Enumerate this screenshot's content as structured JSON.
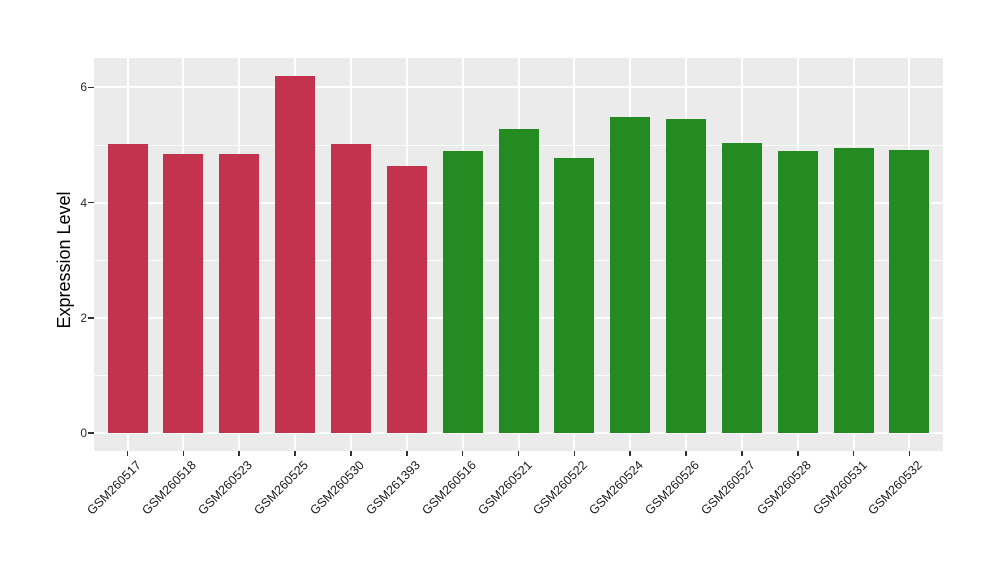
{
  "chart_data": {
    "type": "bar",
    "title": "",
    "xlabel": "",
    "ylabel": "Expression Level",
    "categories": [
      "GSM260517",
      "GSM260518",
      "GSM260523",
      "GSM260525",
      "GSM260530",
      "GSM261393",
      "GSM260516",
      "GSM260521",
      "GSM260522",
      "GSM260524",
      "GSM260526",
      "GSM260527",
      "GSM260528",
      "GSM260531",
      "GSM260532"
    ],
    "values": [
      5.02,
      4.85,
      4.85,
      6.2,
      5.01,
      4.64,
      4.89,
      5.27,
      4.78,
      5.49,
      5.46,
      5.04,
      4.9,
      4.94,
      4.92
    ],
    "bar_groups": [
      "red",
      "red",
      "red",
      "red",
      "red",
      "red",
      "green",
      "green",
      "green",
      "green",
      "green",
      "green",
      "green",
      "green",
      "green"
    ],
    "group_colors": {
      "red": "#C3334D",
      "green": "#238B22"
    },
    "yticks": [
      0,
      2,
      4,
      6
    ],
    "minor_yticks": [
      1,
      3,
      5
    ],
    "axis_range": [
      -0.31,
      6.51
    ],
    "grid": true,
    "legend": "none",
    "panel_bg": "#EBEBEB",
    "grid_major_color": "#FFFFFF",
    "grid_minor_color": "#FFFFFF",
    "axis_text_color": "#2B2B2B",
    "tick_color": "#333333"
  }
}
